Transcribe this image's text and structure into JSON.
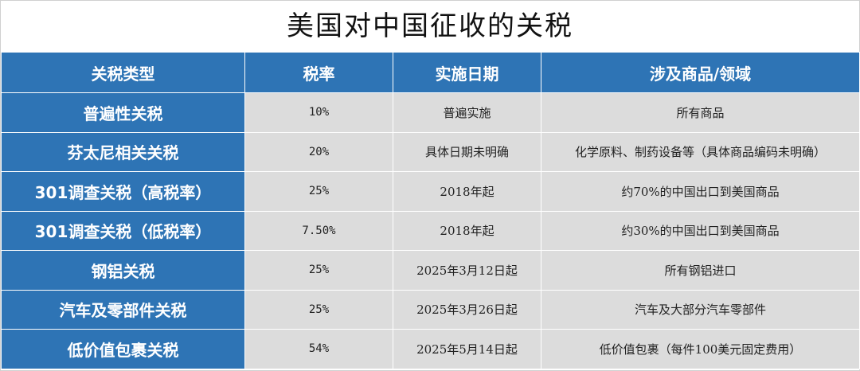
{
  "title": "美国对中国征收的关税",
  "table": {
    "headers": [
      "关税类型",
      "税率",
      "实施日期",
      "涉及商品/领域"
    ],
    "rows": [
      {
        "type": "普遍性关税",
        "rate": "10%",
        "date": "普遍实施",
        "scope": "所有商品"
      },
      {
        "type": "芬太尼相关关税",
        "rate": "20%",
        "date": "具体日期未明确",
        "scope": "化学原料、制药设备等（具体商品编码未明确）"
      },
      {
        "type": "301调查关税（高税率）",
        "rate": "25%",
        "date": "2018年起",
        "scope": "约70%的中国出口到美国商品"
      },
      {
        "type": "301调查关税（低税率）",
        "rate": "7.50%",
        "date": "2018年起",
        "scope": "约30%的中国出口到美国商品"
      },
      {
        "type": "钢铝关税",
        "rate": "25%",
        "date": "2025年3月12日起",
        "scope": "所有钢铝进口"
      },
      {
        "type": "汽车及零部件关税",
        "rate": "25%",
        "date": "2025年3月26日起",
        "scope": "汽车及大部分汽车零部件"
      },
      {
        "type": "低价值包裹关税",
        "rate": "54%",
        "date": "2025年5月14日起",
        "scope": "低价值包裹（每件100美元固定费用）"
      }
    ]
  },
  "colors": {
    "header_bg": "#2e74b5",
    "cell_bg": "#dcdcdc",
    "header_text": "#ffffff"
  }
}
